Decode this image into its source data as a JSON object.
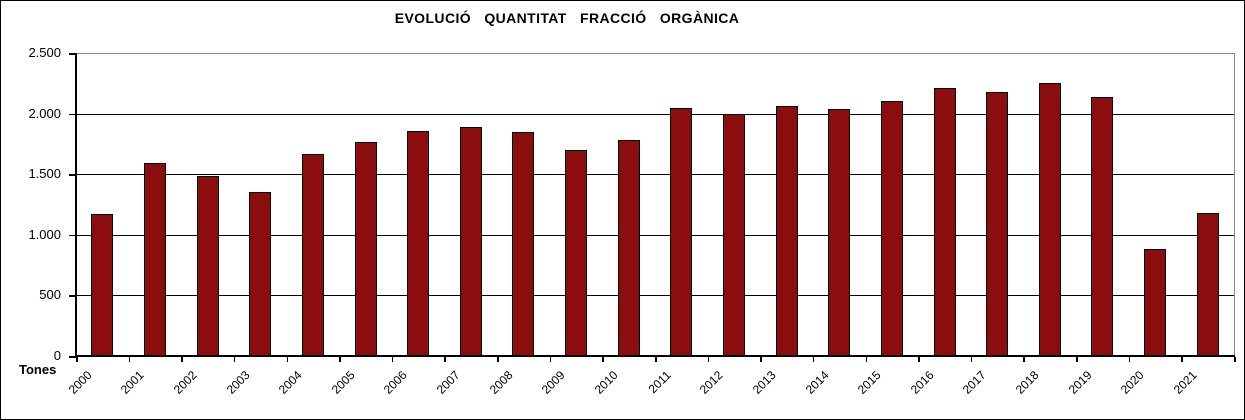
{
  "chart_data": {
    "type": "bar",
    "title": "EVOLUCIÓ QUANTITAT FRACCIÓ ORGÀNICA",
    "xlabel": "",
    "ylabel": "Tones",
    "categories": [
      "2000",
      "2001",
      "2002",
      "2003",
      "2004",
      "2005",
      "2006",
      "2007",
      "2008",
      "2009",
      "2010",
      "2011",
      "2012",
      "2013",
      "2014",
      "2015",
      "2016",
      "2017",
      "2018",
      "2019",
      "2020",
      "2021"
    ],
    "values": [
      1170,
      1590,
      1485,
      1350,
      1670,
      1765,
      1855,
      1890,
      1845,
      1700,
      1780,
      2050,
      2000,
      2065,
      2040,
      2100,
      2210,
      2180,
      2250,
      2135,
      880,
      1180
    ],
    "ylim": [
      0,
      2500
    ],
    "ytick_interval": 500,
    "ytick_labels": [
      "0",
      "500",
      "1.000",
      "1.500",
      "2.000",
      "2.500"
    ],
    "grid": true,
    "legend": "none",
    "colors": {
      "bar_fill": "#8B0D0D",
      "bar_border": "#000000",
      "gridline": "#000000",
      "axis": "#000000",
      "plot_frame": "#8C8C8C",
      "background": "#FFFFFF",
      "text": "#000000"
    }
  }
}
